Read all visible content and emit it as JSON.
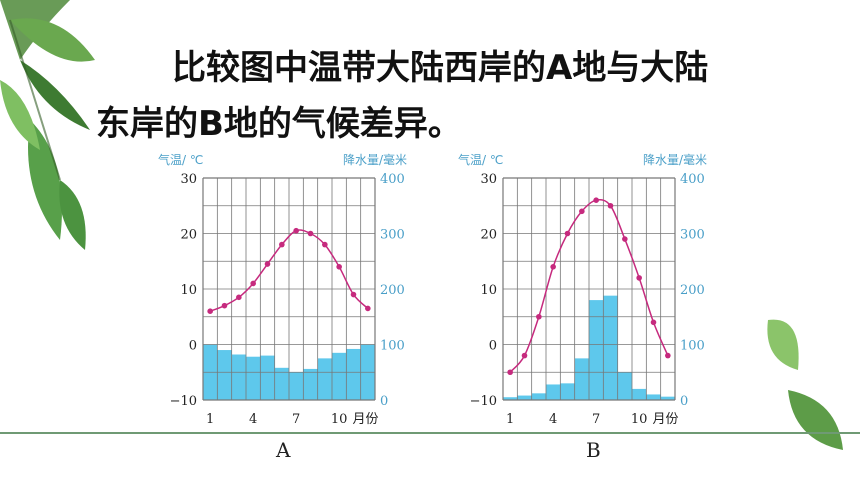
{
  "question": {
    "line1": "比较图中温带大陆西岸的A地与大陆",
    "line2": "东岸的B地的气候差异。"
  },
  "colors": {
    "temp_curve": "#c62a7e",
    "bars": "#5ec8ec",
    "axis_text": "#4a9fc8",
    "grid": "#777777",
    "divider": "#6f9a74"
  },
  "chart_data": [
    {
      "type": "bar+line",
      "caption": "A",
      "left_axis_label": "气温/ ℃",
      "right_axis_label": "降水量/毫米",
      "x_unit_label": "月份",
      "x_tick_labels": [
        "1",
        "4",
        "7",
        "10"
      ],
      "temp_ylim": [
        -10,
        30
      ],
      "temp_ticks": [
        "30",
        "20",
        "10",
        "0",
        "−10"
      ],
      "precip_ylim": [
        0,
        400
      ],
      "precip_ticks": [
        "400",
        "300",
        "200",
        "100",
        "0"
      ],
      "months": [
        1,
        2,
        3,
        4,
        5,
        6,
        7,
        8,
        9,
        10,
        11,
        12
      ],
      "temperature": [
        6,
        7,
        8.5,
        11,
        14.5,
        18,
        20.5,
        20,
        18,
        14,
        9,
        6.5
      ],
      "precipitation": [
        100,
        90,
        82,
        78,
        80,
        58,
        50,
        56,
        75,
        85,
        92,
        100
      ]
    },
    {
      "type": "bar+line",
      "caption": "B",
      "left_axis_label": "气温/ ℃",
      "right_axis_label": "降水量/毫米",
      "x_unit_label": "月份",
      "x_tick_labels": [
        "1",
        "4",
        "7",
        "10"
      ],
      "temp_ylim": [
        -10,
        30
      ],
      "temp_ticks": [
        "30",
        "20",
        "10",
        "0",
        "−10"
      ],
      "precip_ylim": [
        0,
        400
      ],
      "precip_ticks": [
        "400",
        "300",
        "200",
        "100",
        "0"
      ],
      "months": [
        1,
        2,
        3,
        4,
        5,
        6,
        7,
        8,
        9,
        10,
        11,
        12
      ],
      "temperature": [
        -5,
        -2,
        5,
        14,
        20,
        24,
        26,
        25,
        19,
        12,
        4,
        -2
      ],
      "precipitation": [
        5,
        8,
        12,
        28,
        30,
        75,
        180,
        188,
        50,
        20,
        10,
        6
      ]
    }
  ]
}
